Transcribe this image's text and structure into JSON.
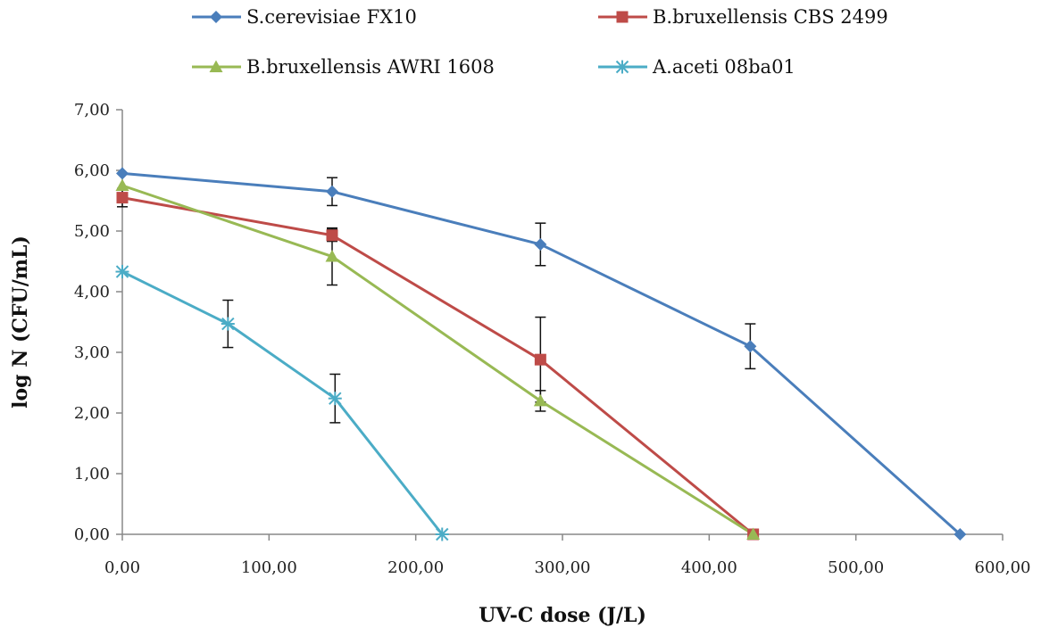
{
  "chart_data": {
    "type": "line",
    "title": "",
    "xlabel": "UV-C dose (J/L)",
    "ylabel": "log N (CFU/mL)",
    "xlim": [
      0,
      600
    ],
    "ylim": [
      0,
      7
    ],
    "x_ticks": [
      0,
      100,
      200,
      300,
      400,
      500,
      600
    ],
    "y_ticks": [
      0,
      1,
      2,
      3,
      4,
      5,
      6,
      7
    ],
    "x_tick_labels": [
      "0,00",
      "100,00",
      "200,00",
      "300,00",
      "400,00",
      "500,00",
      "600,00"
    ],
    "y_tick_labels": [
      "0,00",
      "1,00",
      "2,00",
      "3,00",
      "4,00",
      "5,00",
      "6,00",
      "7,00"
    ],
    "grid": false,
    "legend_position": "top",
    "series": [
      {
        "name": "S.cerevisiae FX10",
        "color": "#4A7EBB",
        "marker": "diamond",
        "x": [
          0,
          143,
          285,
          428,
          571
        ],
        "y": [
          5.95,
          5.65,
          4.78,
          3.1,
          0.0
        ],
        "err": [
          0.0,
          0.23,
          0.35,
          0.37,
          0.0
        ]
      },
      {
        "name": "B.bruxellensis CBS 2499",
        "color": "#BE4B48",
        "marker": "square",
        "x": [
          0,
          143,
          285,
          430
        ],
        "y": [
          5.55,
          4.93,
          2.88,
          0.0
        ],
        "err": [
          0.15,
          0.1,
          0.7,
          0.0
        ]
      },
      {
        "name": "B.bruxellensis AWRI 1608",
        "color": "#98B954",
        "marker": "triangle",
        "x": [
          0,
          143,
          285,
          430
        ],
        "y": [
          5.75,
          4.58,
          2.2,
          0.0
        ],
        "err": [
          0.0,
          0.47,
          0.17,
          0.0
        ]
      },
      {
        "name": "A.aceti 08ba01",
        "color": "#4BACC6",
        "marker": "star",
        "x": [
          0,
          72,
          145,
          218
        ],
        "y": [
          4.33,
          3.47,
          2.24,
          0.0
        ],
        "err": [
          0.0,
          0.39,
          0.4,
          0.0
        ]
      }
    ]
  }
}
